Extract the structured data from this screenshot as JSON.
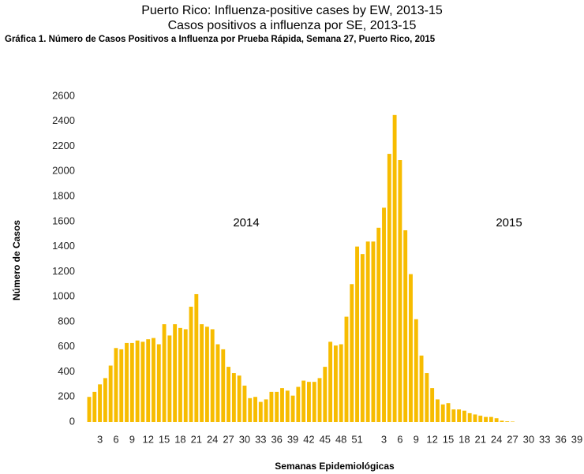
{
  "chart_data": {
    "type": "bar",
    "title": "Puerto Rico: Influenza-positive cases by EW, 2013-15",
    "subtitle": "Casos positivos a influenza por SE, 2013-15",
    "caption": "Gráfica 1. Número de Casos Positivos a Influenza por Prueba Rápida, Semana 27, Puerto Rico, 2015",
    "x_label": "Semanas  Epidemiológicas",
    "y_label": "Número de  Casos",
    "annotations": [
      "2014",
      "2015"
    ],
    "color": "#f7bc00",
    "categories": [
      null,
      null,
      "3",
      null,
      null,
      "6",
      null,
      null,
      "9",
      null,
      null,
      "12",
      null,
      null,
      "15",
      null,
      null,
      "18",
      null,
      null,
      "21",
      null,
      null,
      "24",
      null,
      null,
      "27",
      null,
      null,
      "30",
      null,
      null,
      "33",
      null,
      null,
      "36",
      null,
      null,
      "39",
      null,
      null,
      "42",
      null,
      null,
      "45",
      null,
      null,
      "48",
      null,
      null,
      "51",
      null,
      null,
      null,
      null,
      "3",
      null,
      null,
      "6",
      null,
      null,
      "9",
      null,
      null,
      "12",
      null,
      null,
      "15",
      null,
      null,
      "18",
      null,
      null,
      "21",
      null,
      null,
      "24",
      null,
      null,
      "27",
      null,
      null,
      "30",
      null,
      null,
      "33",
      null,
      null,
      "36",
      null,
      null,
      "39"
    ],
    "values": [
      200,
      240,
      300,
      350,
      450,
      590,
      580,
      630,
      630,
      650,
      640,
      660,
      670,
      620,
      780,
      690,
      780,
      750,
      740,
      920,
      1020,
      780,
      760,
      740,
      620,
      580,
      440,
      390,
      370,
      290,
      190,
      200,
      160,
      180,
      240,
      240,
      270,
      250,
      210,
      280,
      330,
      320,
      320,
      350,
      440,
      640,
      610,
      620,
      840,
      1100,
      1400,
      1340,
      1440,
      1440,
      1550,
      1710,
      2140,
      2450,
      2090,
      1530,
      1180,
      820,
      530,
      390,
      270,
      180,
      140,
      150,
      100,
      100,
      90,
      70,
      60,
      50,
      40,
      40,
      30,
      10,
      5,
      3,
      0,
      0,
      0,
      0,
      0,
      0,
      0,
      0,
      0,
      0,
      0,
      0
    ],
    "ylim": [
      0,
      2600
    ],
    "yticks": [
      0,
      200,
      400,
      600,
      800,
      1000,
      1200,
      1400,
      1600,
      1800,
      2000,
      2200,
      2400,
      2600
    ],
    "grid": false
  }
}
